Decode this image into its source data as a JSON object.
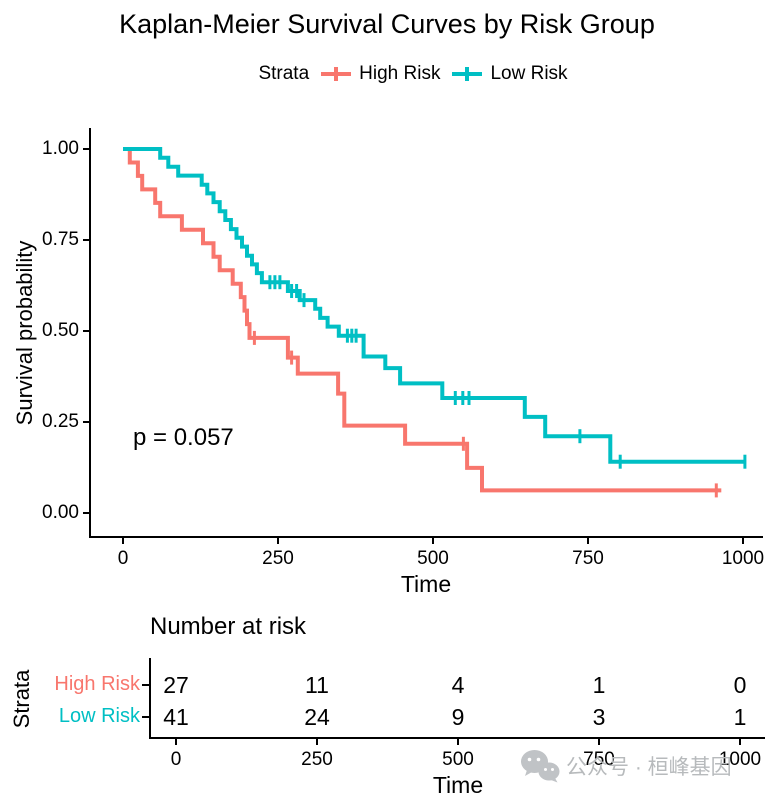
{
  "title": "Kaplan-Meier Survival Curves by Risk Group",
  "legend": {
    "label": "Strata",
    "items": [
      {
        "name": "High Risk",
        "color": "#F8766D"
      },
      {
        "name": "Low Risk",
        "color": "#00BFC4"
      }
    ]
  },
  "pvalue": "p = 0.057",
  "axes": {
    "x_label": "Time",
    "y_label": "Survival probability",
    "x_ticks": [
      0,
      250,
      500,
      750,
      1000
    ],
    "y_ticks": [
      "1.00",
      "0.75",
      "0.50",
      "0.25",
      "0.00"
    ]
  },
  "risk_table": {
    "title": "Number at risk",
    "strata_label": "Strata",
    "x_label": "Time",
    "x_ticks": [
      0,
      250,
      500,
      750,
      1000
    ],
    "rows": [
      {
        "label": "High Risk",
        "color": "#F8766D",
        "counts": [
          "27",
          "11",
          "4",
          "1",
          "0"
        ]
      },
      {
        "label": "Low Risk",
        "color": "#00BFC4",
        "counts": [
          "41",
          "24",
          "9",
          "3",
          "1"
        ]
      }
    ]
  },
  "watermark": "公众号 · 桓峰基因",
  "chart_data": {
    "type": "line",
    "subtype": "kaplan-meier-step",
    "title": "Kaplan-Meier Survival Curves by Risk Group",
    "xlabel": "Time",
    "ylabel": "Survival probability",
    "xlim": [
      0,
      1040
    ],
    "ylim": [
      0.0,
      1.0
    ],
    "grid": false,
    "legend_position": "top",
    "pvalue_annotation": "p = 0.057",
    "series": [
      {
        "name": "High Risk",
        "color": "#F8766D",
        "n_start": 27,
        "steps": [
          [
            0,
            1.0
          ],
          [
            11,
            0.963
          ],
          [
            24,
            0.926
          ],
          [
            31,
            0.889
          ],
          [
            52,
            0.852
          ],
          [
            60,
            0.815
          ],
          [
            95,
            0.778
          ],
          [
            129,
            0.741
          ],
          [
            146,
            0.704
          ],
          [
            156,
            0.667
          ],
          [
            177,
            0.63
          ],
          [
            190,
            0.593
          ],
          [
            196,
            0.556
          ],
          [
            200,
            0.519
          ],
          [
            204,
            0.481
          ],
          [
            266,
            0.427
          ],
          [
            282,
            0.383
          ],
          [
            347,
            0.328
          ],
          [
            357,
            0.24
          ],
          [
            455,
            0.19
          ],
          [
            555,
            0.124
          ],
          [
            579,
            0.062
          ]
        ],
        "end_time": 965,
        "censors": [
          [
            212,
            0.481
          ],
          [
            272,
            0.427
          ],
          [
            549,
            0.19
          ],
          [
            957,
            0.062
          ]
        ]
      },
      {
        "name": "Low Risk",
        "color": "#00BFC4",
        "n_start": 41,
        "steps": [
          [
            0,
            1.0
          ],
          [
            60,
            0.976
          ],
          [
            73,
            0.951
          ],
          [
            89,
            0.927
          ],
          [
            127,
            0.902
          ],
          [
            136,
            0.878
          ],
          [
            146,
            0.854
          ],
          [
            156,
            0.829
          ],
          [
            165,
            0.805
          ],
          [
            174,
            0.78
          ],
          [
            183,
            0.756
          ],
          [
            192,
            0.732
          ],
          [
            200,
            0.707
          ],
          [
            208,
            0.683
          ],
          [
            216,
            0.659
          ],
          [
            224,
            0.634
          ],
          [
            266,
            0.61
          ],
          [
            285,
            0.585
          ],
          [
            310,
            0.561
          ],
          [
            318,
            0.536
          ],
          [
            330,
            0.512
          ],
          [
            348,
            0.487
          ],
          [
            388,
            0.43
          ],
          [
            423,
            0.398
          ],
          [
            447,
            0.356
          ],
          [
            515,
            0.316
          ],
          [
            648,
            0.264
          ],
          [
            681,
            0.211
          ],
          [
            786,
            0.141
          ]
        ],
        "end_time": 1005,
        "censors": [
          [
            237,
            0.634
          ],
          [
            245,
            0.634
          ],
          [
            253,
            0.634
          ],
          [
            272,
            0.61
          ],
          [
            280,
            0.61
          ],
          [
            292,
            0.585
          ],
          [
            362,
            0.487
          ],
          [
            369,
            0.487
          ],
          [
            376,
            0.487
          ],
          [
            536,
            0.316
          ],
          [
            548,
            0.316
          ],
          [
            558,
            0.316
          ],
          [
            737,
            0.211
          ],
          [
            802,
            0.141
          ],
          [
            1003,
            0.141
          ]
        ]
      }
    ],
    "risk_table": {
      "title": "Number at risk",
      "times": [
        0,
        250,
        500,
        750,
        1000
      ],
      "High Risk": [
        27,
        11,
        4,
        1,
        0
      ],
      "Low Risk": [
        41,
        24,
        9,
        3,
        1
      ]
    }
  }
}
